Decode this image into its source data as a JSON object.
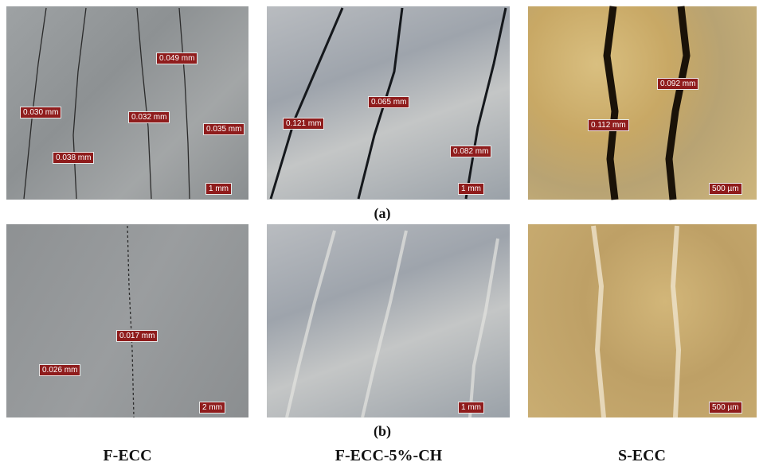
{
  "panels": [
    {
      "labels": [
        "0.049 mm",
        "0.030 mm",
        "0.032 mm",
        "0.035 mm",
        "0.038 mm"
      ],
      "scale_bar": "1 mm"
    },
    {
      "labels": [
        "0.121 mm",
        "0.065 mm",
        "0.082 mm"
      ],
      "scale_bar": "1 mm"
    },
    {
      "labels": [
        "0.092 mm",
        "0.112 mm"
      ],
      "scale_bar": "500 µm"
    },
    {
      "labels": [
        "0.017 mm",
        "0.026 mm"
      ],
      "scale_bar": "2 mm"
    },
    {
      "labels": [],
      "scale_bar": "1 mm"
    },
    {
      "labels": [],
      "scale_bar": "500 µm"
    }
  ],
  "row_labels": [
    "(a)",
    "(b)"
  ],
  "column_titles": [
    "F-ECC",
    "F-ECC-5%-CH",
    "S-ECC"
  ]
}
